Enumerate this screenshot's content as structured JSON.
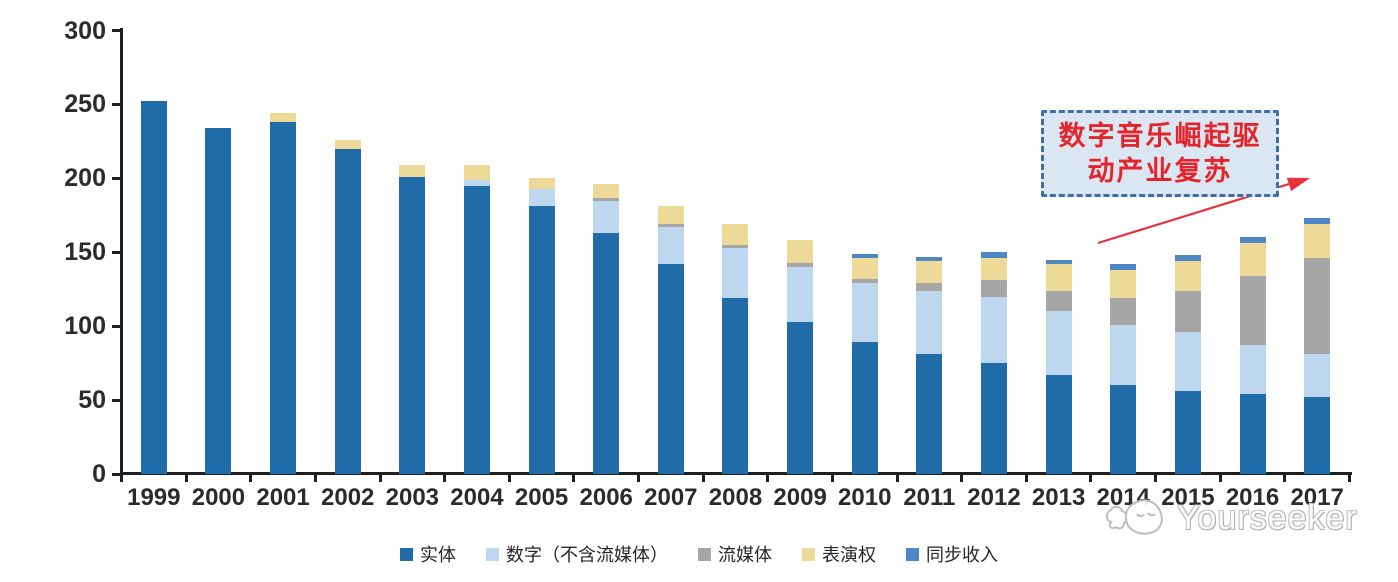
{
  "chart_data": {
    "type": "bar",
    "stacked": true,
    "title": "",
    "categories": [
      "1999",
      "2000",
      "2001",
      "2002",
      "2003",
      "2004",
      "2005",
      "2006",
      "2007",
      "2008",
      "2009",
      "2010",
      "2011",
      "2012",
      "2013",
      "2014",
      "2015",
      "2016",
      "2017"
    ],
    "series": [
      {
        "name": "实体",
        "color": "#1f6ca8",
        "values": [
          252,
          234,
          238,
          220,
          201,
          195,
          181,
          163,
          142,
          119,
          103,
          89,
          81,
          75,
          67,
          60,
          56,
          54,
          52
        ]
      },
      {
        "name": "数字（不含流媒体）",
        "color": "#bdd7ee",
        "values": [
          0,
          0,
          0,
          0,
          0,
          4,
          12,
          22,
          25,
          34,
          37,
          40,
          43,
          45,
          43,
          41,
          40,
          33,
          29
        ]
      },
      {
        "name": "流媒体",
        "color": "#a6a6a6",
        "values": [
          0,
          0,
          0,
          0,
          0,
          0,
          0,
          2,
          2,
          2,
          3,
          3,
          5,
          11,
          14,
          18,
          28,
          47,
          65
        ]
      },
      {
        "name": "表演权",
        "color": "#edd998",
        "values": [
          0,
          0,
          6,
          6,
          8,
          10,
          7,
          9,
          12,
          14,
          15,
          14,
          15,
          15,
          18,
          19,
          20,
          22,
          23
        ]
      },
      {
        "name": "同步收入",
        "color": "#4d87c5",
        "values": [
          0,
          0,
          0,
          0,
          0,
          0,
          0,
          0,
          0,
          0,
          0,
          3,
          3,
          4,
          3,
          4,
          4,
          4,
          4
        ]
      }
    ],
    "totals": [
      252,
      234,
      244,
      226,
      209,
      209,
      200,
      196,
      181,
      169,
      158,
      149,
      147,
      150,
      145,
      142,
      148,
      160,
      173
    ],
    "ylim": [
      0,
      300
    ],
    "yticks": [
      "0",
      "50",
      "100",
      "150",
      "200",
      "250",
      "300"
    ],
    "xlabel": "",
    "ylabel": "",
    "grid": false,
    "legend_position": "bottom"
  },
  "annotation": {
    "lines": [
      "数字音乐崛起驱",
      "动产业复苏"
    ],
    "text_color": "#e3242b",
    "box_background": "#dbe6f3",
    "box_border_color": "#3f6da8",
    "arrow_color": "#e8323b"
  },
  "watermark": {
    "text": "Yourseeker"
  }
}
